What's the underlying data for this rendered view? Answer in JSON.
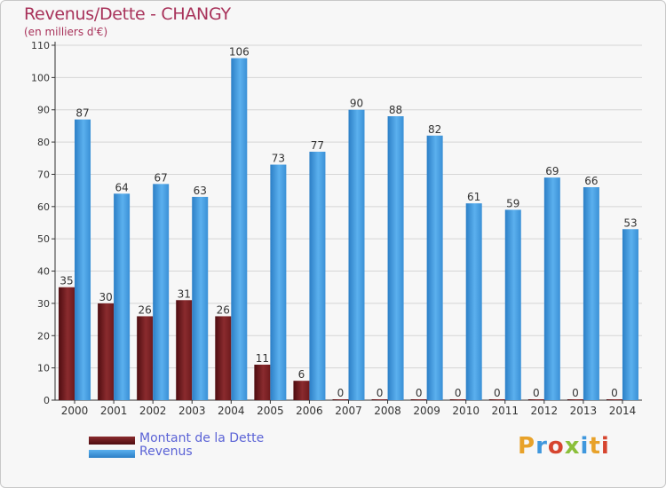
{
  "header": {
    "title": "Revenus/Dette - CHANGY",
    "subtitle": "(en milliers d'€)"
  },
  "colors": {
    "dette": "#7a1f22",
    "revenus": "#3f97dd",
    "title": "#a8325a",
    "legend_text": "#5b63d6"
  },
  "chart_data": {
    "type": "bar",
    "title": "Revenus/Dette - CHANGY",
    "subtitle": "(en milliers d'€)",
    "categories": [
      "2000",
      "2001",
      "2002",
      "2003",
      "2004",
      "2005",
      "2006",
      "2007",
      "2008",
      "2009",
      "2010",
      "2011",
      "2012",
      "2013",
      "2014"
    ],
    "series": [
      {
        "name": "Montant de la Dette",
        "values": [
          35,
          30,
          26,
          31,
          26,
          11,
          6,
          0,
          0,
          0,
          0,
          0,
          0,
          0,
          0
        ]
      },
      {
        "name": "Revenus",
        "values": [
          87,
          64,
          67,
          63,
          106,
          73,
          77,
          90,
          88,
          82,
          61,
          59,
          69,
          66,
          53
        ]
      }
    ],
    "ylim": [
      0,
      110
    ],
    "yticks": [
      0,
      10,
      20,
      30,
      40,
      50,
      60,
      70,
      80,
      90,
      100,
      110
    ],
    "grid": true,
    "legend": "bottom-left"
  },
  "legend": {
    "items": [
      "Montant de la Dette",
      "Revenus"
    ]
  },
  "logo": {
    "text": "Proxiti",
    "icon": "proxiti-logo"
  }
}
